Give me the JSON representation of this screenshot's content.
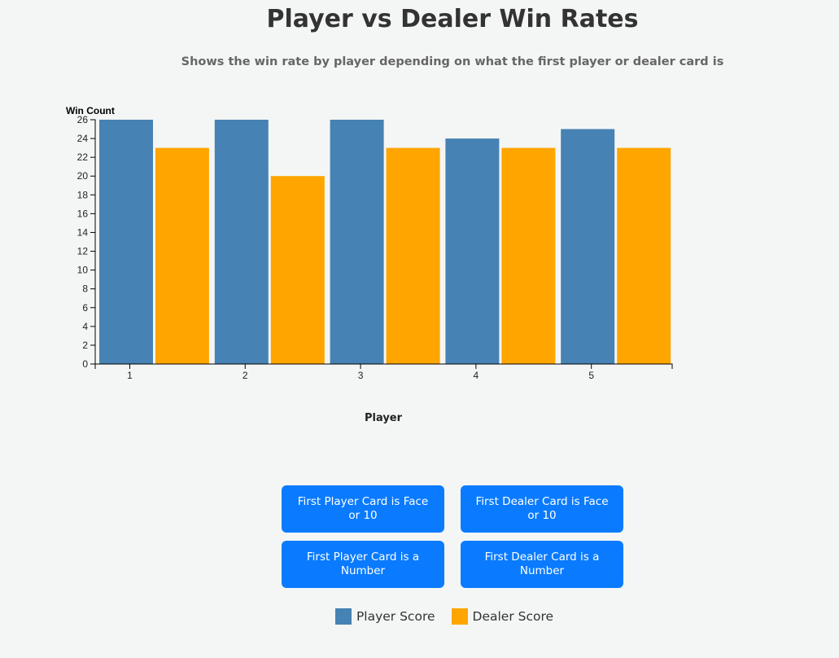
{
  "header": {
    "title": "Player vs Dealer Win Rates",
    "subtitle": "Shows the win rate by player depending on what the first player or dealer card is"
  },
  "colors": {
    "player": "#4682b4",
    "dealer": "#ffa500",
    "button": "#0a7bff"
  },
  "chart_data": {
    "type": "bar",
    "categories": [
      "1",
      "2",
      "3",
      "4",
      "5"
    ],
    "series": [
      {
        "name": "Player Score",
        "values": [
          26,
          26,
          26,
          24,
          25
        ]
      },
      {
        "name": "Dealer Score",
        "values": [
          23,
          20,
          23,
          23,
          23
        ]
      }
    ],
    "xlabel": "Player",
    "ylabel": "Win Count",
    "ylim": [
      0,
      26
    ],
    "yticks": [
      0,
      2,
      4,
      6,
      8,
      10,
      12,
      14,
      16,
      18,
      20,
      22,
      24,
      26
    ],
    "grid": false,
    "legend_position": "bottom"
  },
  "buttons": [
    {
      "label": "First Player Card is Face or 10"
    },
    {
      "label": "First Dealer Card is Face or 10"
    },
    {
      "label": "First Player Card is a Number"
    },
    {
      "label": "First Dealer Card is a Number"
    }
  ],
  "legend": [
    {
      "label": "Player Score",
      "color": "#4682b4"
    },
    {
      "label": "Dealer Score",
      "color": "#ffa500"
    }
  ]
}
